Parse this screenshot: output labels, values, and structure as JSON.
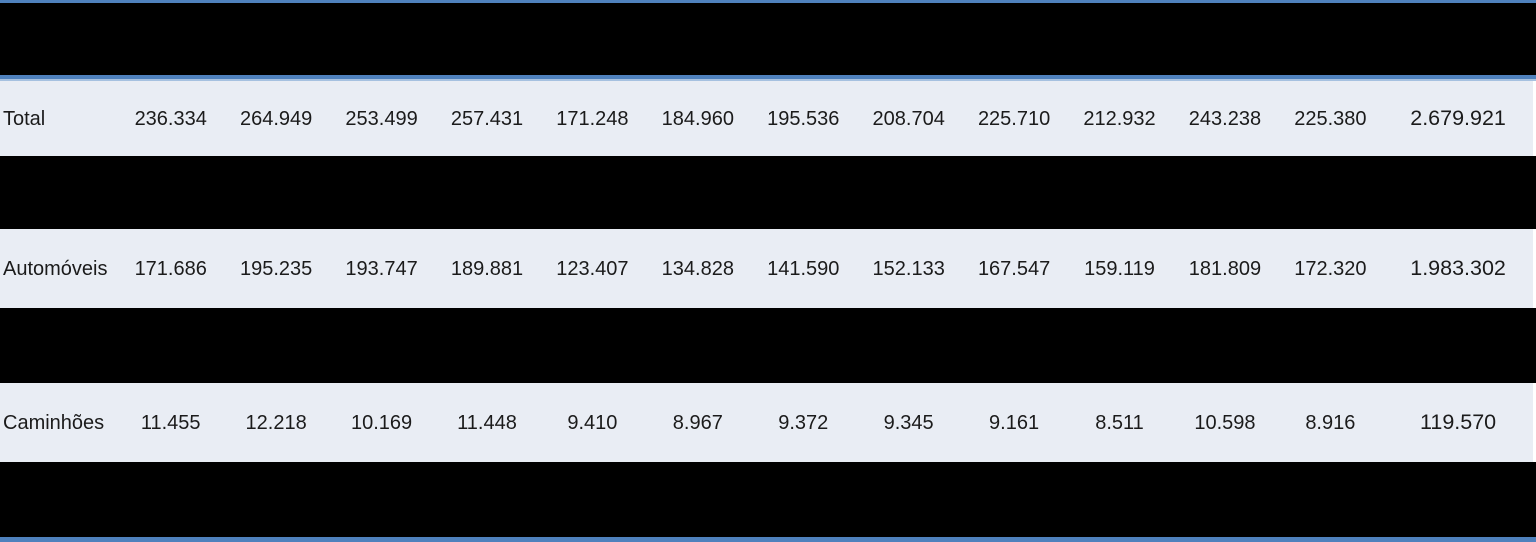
{
  "style": {
    "border_blue": "#4f81bd",
    "border_light_blue": "#a6c1e0",
    "row_light_bg": "#e9edf4",
    "band_black_bg": "#000000",
    "text_color": "#1b1b1b"
  },
  "table": {
    "rows": [
      {
        "label": "Total",
        "values": [
          "236.334",
          "264.949",
          "253.499",
          "257.431",
          "171.248",
          "184.960",
          "195.536",
          "208.704",
          "225.710",
          "212.932",
          "243.238",
          "225.380"
        ],
        "total": "2.679.921"
      },
      {
        "label": "Automóveis",
        "values": [
          "171.686",
          "195.235",
          "193.747",
          "189.881",
          "123.407",
          "134.828",
          "141.590",
          "152.133",
          "167.547",
          "159.119",
          "181.809",
          "172.320"
        ],
        "total": "1.983.302"
      },
      {
        "label": "Caminhões",
        "values": [
          "11.455",
          "12.218",
          "10.169",
          "11.448",
          "9.410",
          "8.967",
          "9.372",
          "9.345",
          "9.161",
          "8.511",
          "10.598",
          "8.916"
        ],
        "total": "119.570"
      }
    ]
  },
  "chart_data": {
    "type": "table",
    "title": "",
    "row_labels": [
      "Total",
      "Automóveis",
      "Caminhões"
    ],
    "columns_per_row": 12,
    "rows": [
      {
        "label": "Total",
        "monthly_values": [
          236334,
          264949,
          253499,
          257431,
          171248,
          184960,
          195536,
          208704,
          225710,
          212932,
          243238,
          225380
        ],
        "row_total": 2679921
      },
      {
        "label": "Automóveis",
        "monthly_values": [
          171686,
          195235,
          193747,
          189881,
          123407,
          134828,
          141590,
          152133,
          167547,
          159119,
          181809,
          172320
        ],
        "row_total": 1983302
      },
      {
        "label": "Caminhões",
        "monthly_values": [
          11455,
          12218,
          10169,
          11448,
          9410,
          8967,
          9372,
          9345,
          9161,
          8511,
          10598,
          8916
        ],
        "row_total": 119570
      }
    ],
    "layout_hints": {
      "number_format": "pt-BR thousands separator (dot)",
      "header_row_and_alternating_rows_blacked_out": true,
      "top_and_bottom_border_color": "#4f81bd",
      "visible_row_background": "#e9edf4"
    }
  }
}
